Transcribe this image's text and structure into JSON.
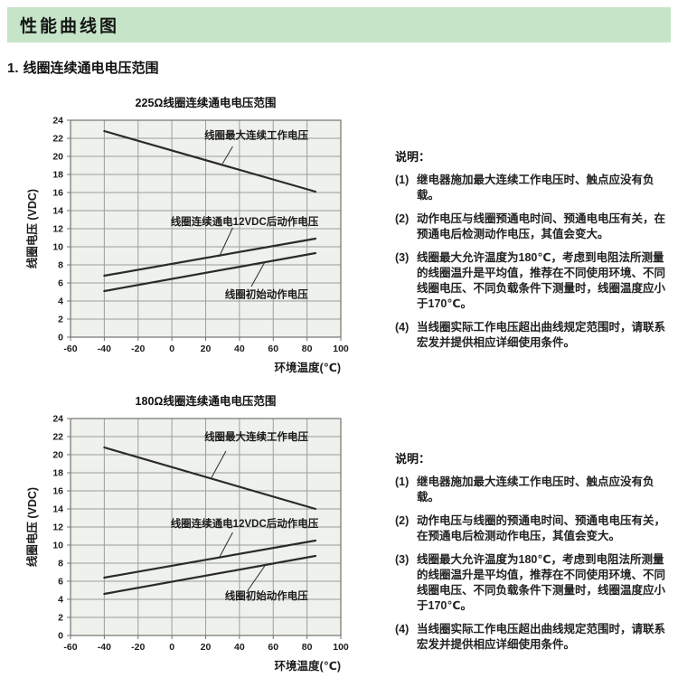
{
  "header": {
    "title": "性能曲线图"
  },
  "section": {
    "number": "1.",
    "title": "线圈连续通电电压范围"
  },
  "colors": {
    "header_bg": "#c6e5c8",
    "plot_bg": "#eef1ec",
    "grid": "#9aa09a",
    "border": "#6f756f",
    "line": "#2b2b2b",
    "text": "#1c1c1c"
  },
  "chart_data": [
    {
      "type": "line",
      "title": "225Ω线圈连续通电电压范围",
      "xlabel": "环境温度(℃)",
      "ylabel": "线圈电压 (VDC)",
      "xlim": [
        -60,
        100
      ],
      "ylim": [
        0,
        24
      ],
      "xticks": [
        -60,
        -40,
        -20,
        0,
        20,
        40,
        60,
        80,
        100
      ],
      "yticks": [
        0,
        2,
        4,
        6,
        8,
        10,
        12,
        14,
        16,
        18,
        20,
        22,
        24
      ],
      "grid": true,
      "legend_position": "inline-annotations",
      "series": [
        {
          "name": "线圈最大连续工作电压",
          "x": [
            -40,
            85
          ],
          "y": [
            22.8,
            16.1
          ]
        },
        {
          "name": "线圈连续通电12VDC后动作电压",
          "x": [
            -40,
            85
          ],
          "y": [
            6.8,
            10.9
          ]
        },
        {
          "name": "线圈初始动作电压",
          "x": [
            -40,
            85
          ],
          "y": [
            5.1,
            9.3
          ]
        }
      ],
      "annotations": [
        {
          "text": "线圈最大连续工作电压",
          "x": 50,
          "y": 22.35,
          "leader": [
            [
              36,
              21.1
            ],
            [
              30,
              19.2
            ]
          ]
        },
        {
          "text": "线圈连续通电12VDC后动作电压",
          "x": 43,
          "y": 12.8,
          "leader": [
            [
              36,
              12.1
            ],
            [
              28,
              8.9
            ]
          ]
        },
        {
          "text": "线圈初始动作电压",
          "x": 56,
          "y": 4.75,
          "leader": [
            [
              55,
              8.3
            ],
            [
              47,
              5.6
            ]
          ]
        }
      ]
    },
    {
      "type": "line",
      "title": "180Ω线圈连续通电电压范围",
      "xlabel": "环境温度(℃)",
      "ylabel": "线圈电压 (VDC)",
      "xlim": [
        -60,
        100
      ],
      "ylim": [
        0,
        24
      ],
      "xticks": [
        -60,
        -40,
        -20,
        0,
        20,
        40,
        60,
        80,
        100
      ],
      "yticks": [
        0,
        2,
        4,
        6,
        8,
        10,
        12,
        14,
        16,
        18,
        20,
        22,
        24
      ],
      "grid": true,
      "legend_position": "inline-annotations",
      "series": [
        {
          "name": "线圈最大连续工作电压",
          "x": [
            -40,
            85
          ],
          "y": [
            20.8,
            14.0
          ]
        },
        {
          "name": "线圈连续通电12VDC后动作电压",
          "x": [
            -40,
            85
          ],
          "y": [
            6.4,
            10.5
          ]
        },
        {
          "name": "线圈初始动作电压",
          "x": [
            -40,
            85
          ],
          "y": [
            4.6,
            8.8
          ]
        }
      ],
      "annotations": [
        {
          "text": "线圈最大连续工作电压",
          "x": 50,
          "y": 22.0,
          "leader": [
            [
              32,
              20.4
            ],
            [
              23,
              17.3
            ]
          ]
        },
        {
          "text": "线圈连续通电12VDC后动作电压",
          "x": 43,
          "y": 12.4,
          "leader": [
            [
              36,
              11.4
            ],
            [
              28,
              8.6
            ]
          ]
        },
        {
          "text": "线圈初始动作电压",
          "x": 56,
          "y": 4.4,
          "leader": [
            [
              55,
              7.7
            ],
            [
              45,
              5.0
            ]
          ]
        }
      ]
    }
  ],
  "notes_blocks": [
    {
      "heading": "说明：",
      "items": [
        {
          "num": "(1)",
          "text": "继电器施加最大连续工作电压时、触点应没有负载。"
        },
        {
          "num": "(2)",
          "text": "动作电压与线圈预通电时间、预通电电压有关，在预通电后检测动作电压，其值会变大。"
        },
        {
          "num": "(3)",
          "text": "线圈最大允许温度为180℃，考虑到电阻法所测量的线圈温升是平均值，推荐在不同使用环境、不同线圈电压、不同负载条件下测量时，线圈温度应小于170℃。"
        },
        {
          "num": "(4)",
          "text": "当线圈实际工作电压超出曲线规定范围时，请联系宏发并提供相应详细使用条件。"
        }
      ]
    },
    {
      "heading": "说明：",
      "items": [
        {
          "num": "(1)",
          "text": "继电器施加最大连续工作电压时、触点应没有负载。"
        },
        {
          "num": "(2)",
          "text": "动作电压与线圈的预通电时间、预通电电压有关，在预通电后检测动作电压，其值会变大。"
        },
        {
          "num": "(3)",
          "text": "线圈最大允许温度为180℃，考虑到电阻法所测量的线圈温升是平均值，推荐在不同使用环境、不同线圈电压、不同负载条件下测量时，线圈温度应小于170℃。"
        },
        {
          "num": "(4)",
          "text": "当线圈实际工作电压超出曲线规定范围时，请联系宏发并提供相应详细使用条件。"
        }
      ]
    }
  ]
}
